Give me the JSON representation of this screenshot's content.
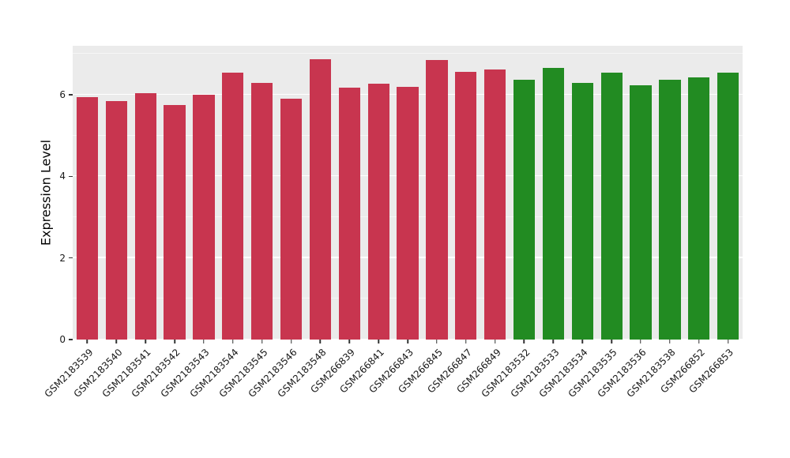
{
  "panel": {
    "background": "#ebebeb",
    "grid_color": "#ffffff"
  },
  "chart_data": {
    "type": "bar",
    "title": "",
    "xlabel": "",
    "ylabel": "Expression Level",
    "ylim": [
      0,
      7.2
    ],
    "yticks": [
      0,
      2,
      4,
      6
    ],
    "yticks_minor": [
      1,
      3,
      5,
      7
    ],
    "grid": true,
    "legend": "none",
    "categories": [
      "GSM2183539",
      "GSM2183540",
      "GSM2183541",
      "GSM2183542",
      "GSM2183543",
      "GSM2183544",
      "GSM2183545",
      "GSM2183546",
      "GSM2183548",
      "GSM266839",
      "GSM266841",
      "GSM266843",
      "GSM266845",
      "GSM266847",
      "GSM266849",
      "GSM2183532",
      "GSM2183533",
      "GSM2183534",
      "GSM2183535",
      "GSM2183536",
      "GSM2183538",
      "GSM266852",
      "GSM266853"
    ],
    "values": [
      5.95,
      5.85,
      6.04,
      5.75,
      6.0,
      6.55,
      6.3,
      5.9,
      6.87,
      6.17,
      6.28,
      6.2,
      6.85,
      6.57,
      6.62,
      6.37,
      6.65,
      6.3,
      6.55,
      6.23,
      6.37,
      6.42,
      6.55
    ],
    "groups": [
      "red",
      "red",
      "red",
      "red",
      "red",
      "red",
      "red",
      "red",
      "red",
      "red",
      "red",
      "red",
      "red",
      "red",
      "red",
      "green",
      "green",
      "green",
      "green",
      "green",
      "green",
      "green",
      "green"
    ],
    "group_colors": {
      "red": "#c8354f",
      "green": "#228b22"
    }
  }
}
